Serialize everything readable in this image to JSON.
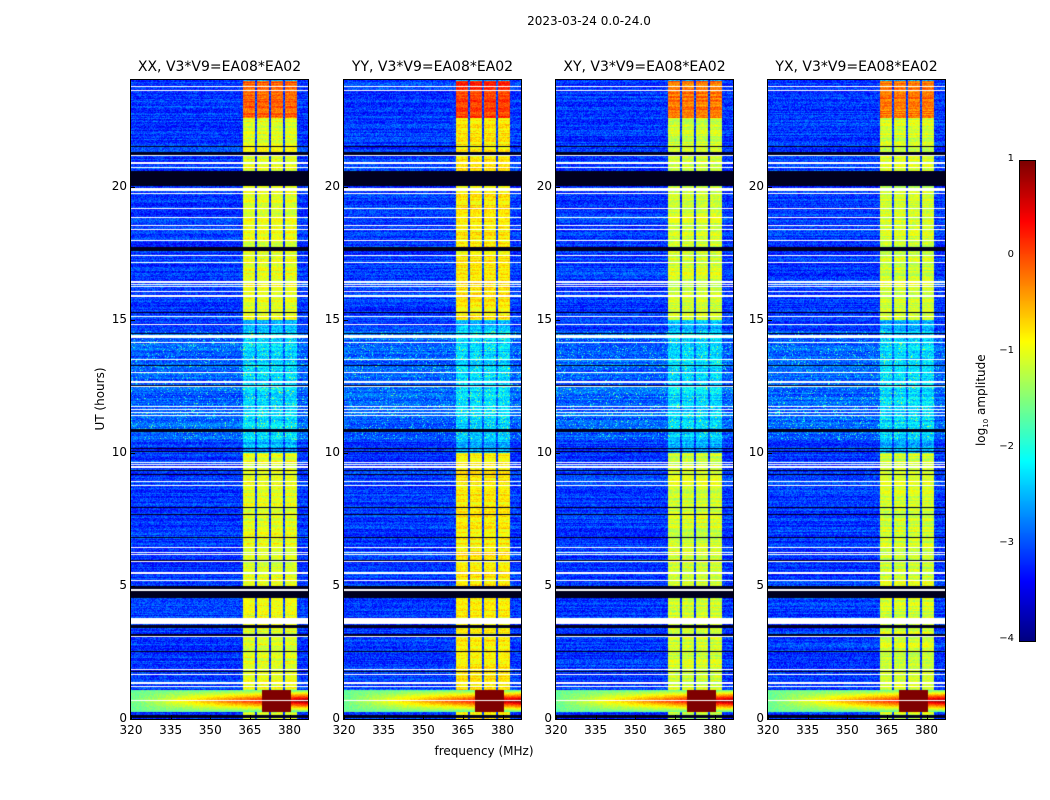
{
  "chart_data": {
    "type": "heatmap",
    "title": "2023-03-24 0.0-24.0",
    "xlabel": "frequency (MHz)",
    "ylabel": "UT (hours)",
    "xlim": [
      320,
      387
    ],
    "ylim": [
      0,
      24
    ],
    "xticks": [
      320,
      335,
      350,
      365,
      380
    ],
    "yticks": [
      0,
      5,
      10,
      15,
      20
    ],
    "colorbar": {
      "label_main": "log",
      "label_sub": "10",
      "label_rest": " amplitude",
      "range": [
        -4,
        1
      ],
      "ticks": [
        1,
        0,
        -1,
        -2,
        -3,
        -4
      ],
      "colormap": "jet"
    },
    "panels": [
      {
        "title": "XX, V3*V9=EA08*EA02",
        "band_level": -1.0,
        "seed": 11
      },
      {
        "title": "YY, V3*V9=EA08*EA02",
        "band_level": -0.8,
        "seed": 23
      },
      {
        "title": "XY, V3*V9=EA08*EA02",
        "band_level": -1.1,
        "seed": 37
      },
      {
        "title": "YX, V3*V9=EA08*EA02",
        "band_level": -1.1,
        "seed": 51
      }
    ],
    "features": {
      "background_level": -3.1,
      "bright_band_mhz": [
        362.3,
        382.6
      ],
      "subband_gaps_mhz": [
        367.2,
        372.5,
        377.8
      ],
      "bright_band_active_hours": [
        [
          0,
          10
        ],
        [
          15,
          24
        ]
      ],
      "bright_band_strong_hours": [
        22.6,
        24
      ],
      "rfi_hours": [
        0.3,
        1.1
      ],
      "rfi_saturated_mhz": [
        369.5,
        380.5
      ],
      "noisy_hours": [
        10.5,
        14.6
      ],
      "flagged_white_hours": [
        [
          3.6,
          3.8
        ],
        [
          5.45,
          5.55
        ],
        [
          14.35,
          14.45
        ],
        [
          15.85,
          15.95
        ],
        [
          19.85,
          19.95
        ],
        [
          20.85,
          20.95
        ],
        [
          13.0,
          13.05
        ],
        [
          12.5,
          12.55
        ]
      ],
      "zero_black_hours": [
        [
          4.55,
          5.0
        ],
        [
          20.05,
          20.6
        ],
        [
          17.6,
          17.75
        ],
        [
          21.15,
          21.3
        ],
        [
          10.8,
          10.9
        ],
        [
          3.45,
          3.55
        ],
        [
          0.05,
          0.15
        ]
      ]
    }
  }
}
